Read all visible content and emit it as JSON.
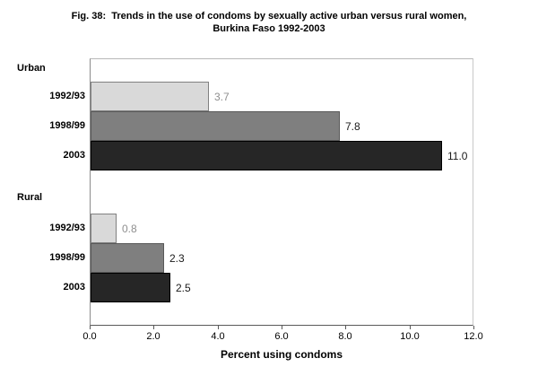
{
  "title": {
    "line1": "Fig. 38:  Trends in the use of condoms by sexually active urban versus rural women,",
    "line2": "Burkina Faso 1992-2003"
  },
  "chart_data": {
    "type": "bar",
    "orientation": "horizontal",
    "title": "Fig. 38: Trends in the use of condoms by sexually active urban versus rural women, Burkina Faso 1992-2003",
    "xlabel": "Percent using condoms",
    "xlim": [
      0.0,
      12.0
    ],
    "xticks": [
      "0.0",
      "2.0",
      "4.0",
      "6.0",
      "8.0",
      "10.0",
      "12.0"
    ],
    "grid": false,
    "legend": "none",
    "groups": [
      {
        "label": "Urban",
        "categories": [
          "1992/93",
          "1998/99",
          "2003"
        ],
        "values": [
          3.7,
          7.8,
          11.0
        ],
        "value_labels": [
          "3.7",
          "7.8",
          "11.0"
        ]
      },
      {
        "label": "Rural",
        "categories": [
          "1992/93",
          "1998/99",
          "2003"
        ],
        "values": [
          0.8,
          2.3,
          2.5
        ],
        "value_labels": [
          "0.8",
          "2.3",
          "2.5"
        ]
      }
    ],
    "bar_styles": [
      {
        "name": "1992/93",
        "fill": "#d9d9d9",
        "border": "#808080",
        "label_color": "#8f8f8f"
      },
      {
        "name": "1998/99",
        "fill": "#7f7f7f",
        "border": "#595959",
        "label_color": "#1a1a1a"
      },
      {
        "name": "2003",
        "fill": "#262626",
        "border": "#000000",
        "label_color": "#1a1a1a"
      }
    ]
  }
}
